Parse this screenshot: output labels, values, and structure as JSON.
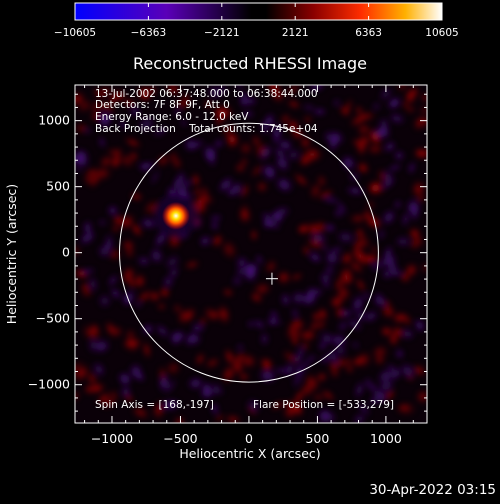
{
  "colorbar": {
    "tick_labels": [
      "−10605",
      "−6363",
      "−2121",
      "2121",
      "6363",
      "10605"
    ],
    "tick_values": [
      -10605,
      -6363,
      -2121,
      2121,
      6363,
      10605
    ],
    "colors": [
      "#0000ff",
      "#6a00b0",
      "#000000",
      "#8b0000",
      "#ff2d00",
      "#ffb000",
      "#ffffff"
    ]
  },
  "plot": {
    "title": "Reconstructed RHESSI Image",
    "xlabel": "Heliocentric X (arcsec)",
    "ylabel": "Heliocentric Y (arcsec)",
    "x_ticks": [
      "−1000",
      "−500",
      "0",
      "500",
      "1000"
    ],
    "y_ticks": [
      "1000",
      "500",
      "0",
      "−500",
      "−1000"
    ],
    "x_range": [
      -1270,
      1300
    ],
    "y_range": [
      -1290,
      1270
    ],
    "info_lines": [
      "13-Jul-2002 06:37:48.000 to 06:38:44.000",
      "Detectors: 7F 8F 9F, Att 0",
      "Energy Range: 6.0 - 12.0 keV",
      "Back Projection    Total counts: 1.745e+04"
    ],
    "spin_axis": "Spin Axis = [168,-197]",
    "flare_position": "Flare Position = [-533,279]",
    "solar_disk_radius_arcsec": 945,
    "flare_center_arcsec": [
      -533,
      279
    ],
    "spin_axis_arcsec": [
      168,
      -197
    ]
  },
  "timestamp": "30-Apr-2022 03:15"
}
